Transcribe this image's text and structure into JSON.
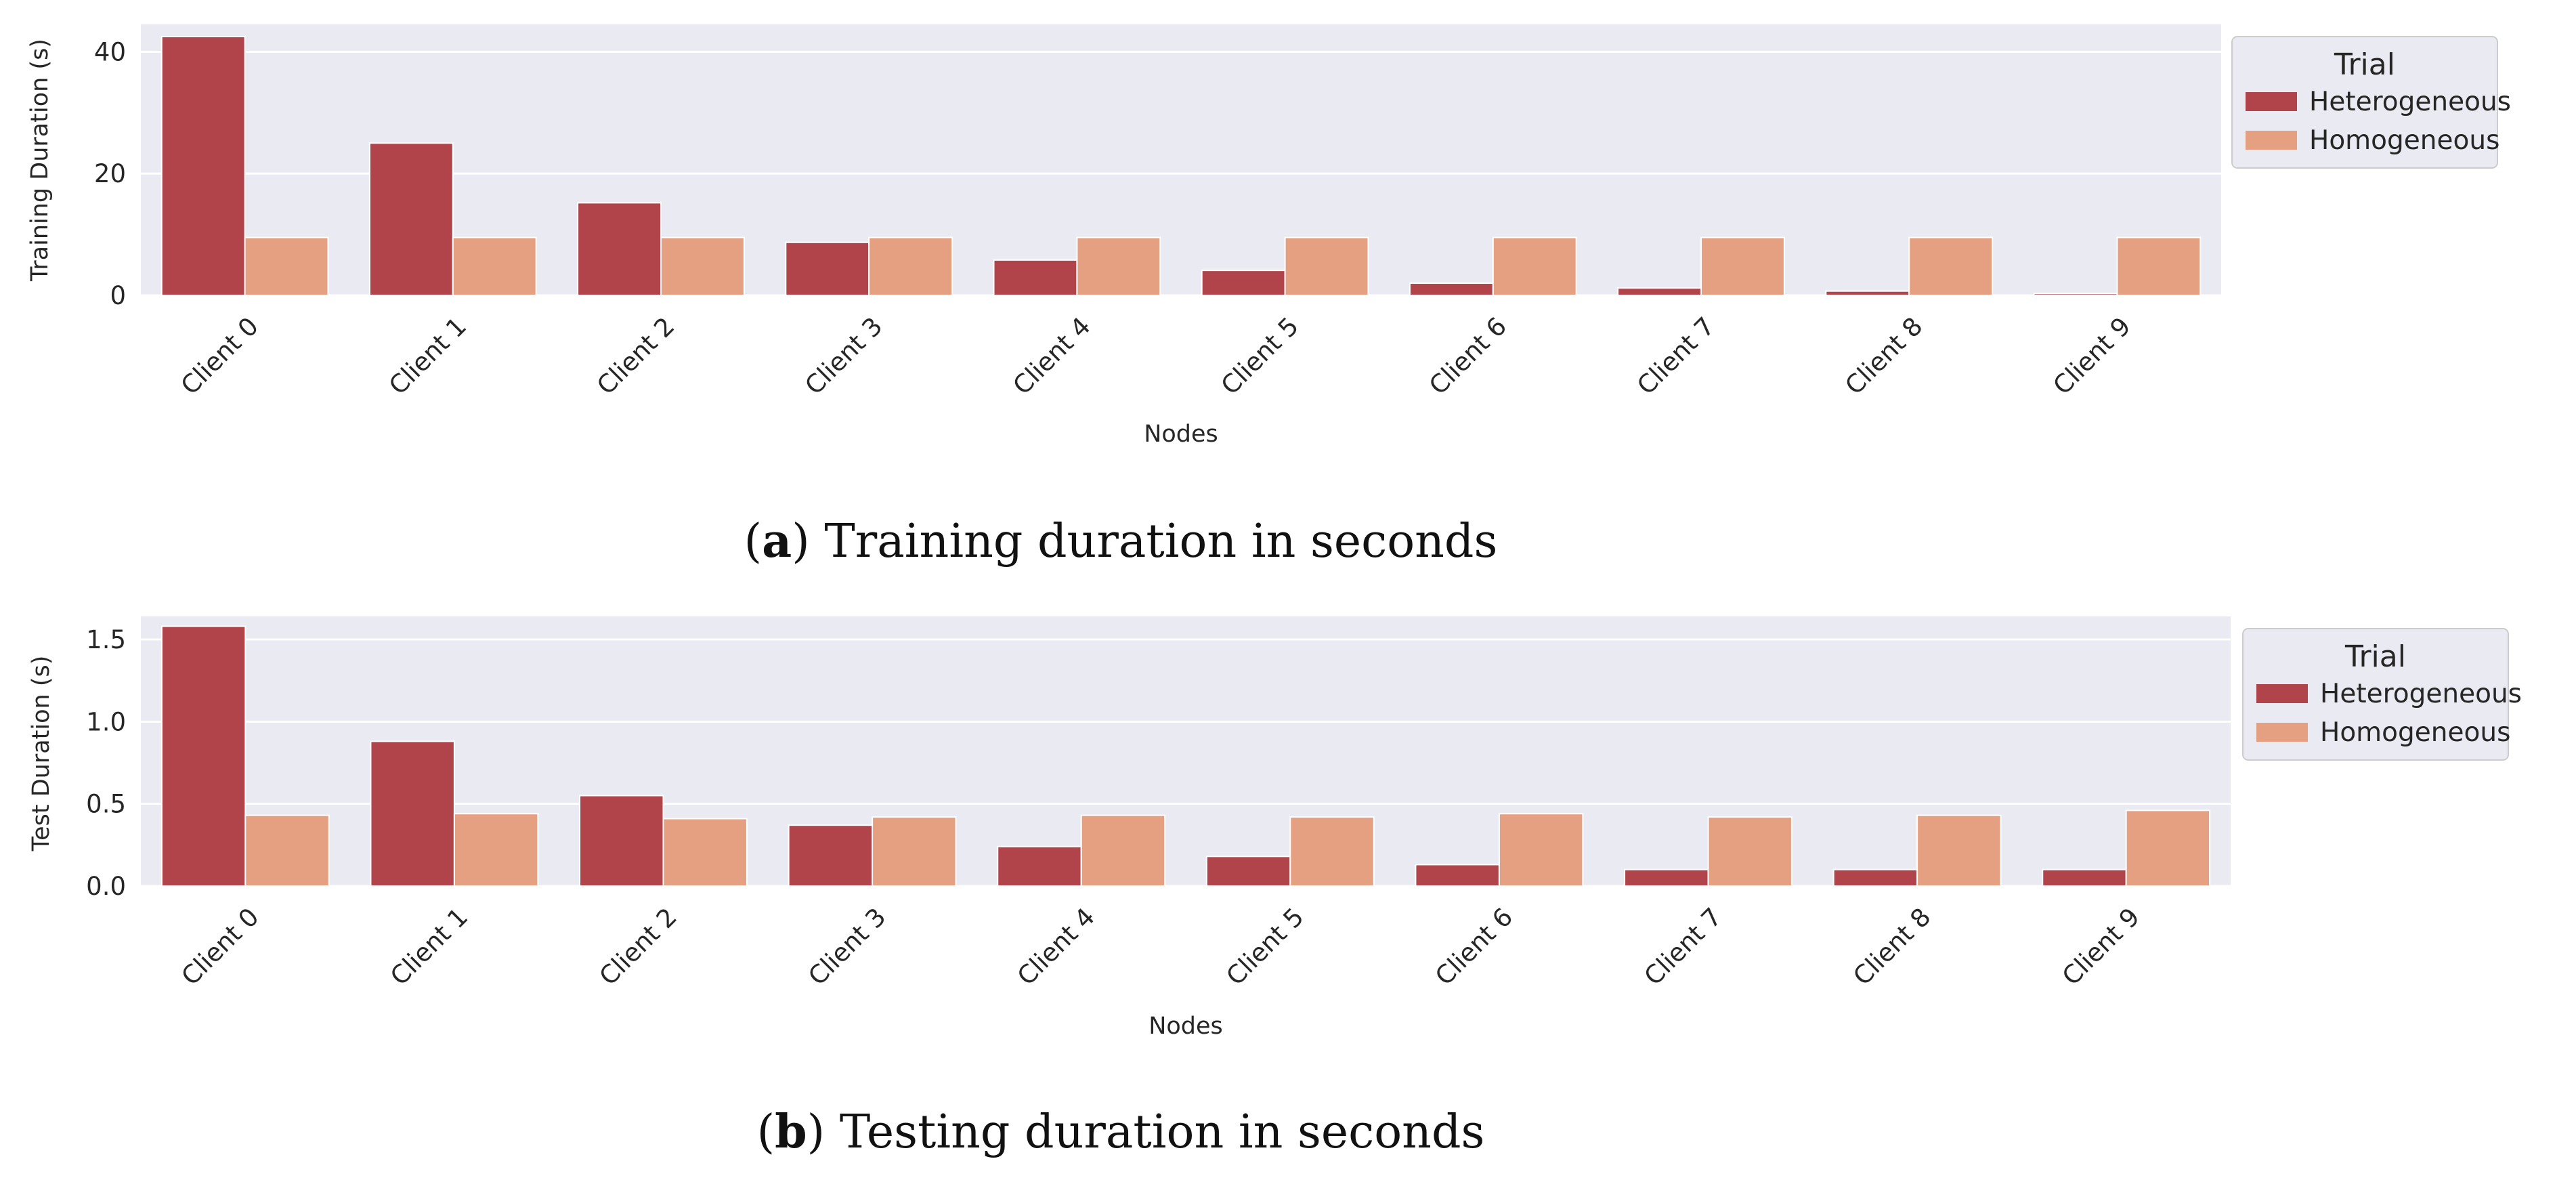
{
  "chart_data": [
    {
      "type": "bar",
      "title": "",
      "xlabel": "Nodes",
      "ylabel": "Training Duration (s)",
      "ylim": [
        0,
        44.5
      ],
      "yticks": [
        0,
        20,
        40
      ],
      "ytick_labels": [
        "0",
        "20",
        "40"
      ],
      "categories": [
        "Client 0",
        "Client 1",
        "Client 2",
        "Client 3",
        "Client 4",
        "Client 5",
        "Client 6",
        "Client 7",
        "Client 8",
        "Client 9"
      ],
      "series": [
        {
          "name": "Heterogeneous",
          "color": "#b0444a",
          "values": [
            42.5,
            25.0,
            15.2,
            8.7,
            5.8,
            4.1,
            2.0,
            1.2,
            0.7,
            0.3
          ]
        },
        {
          "name": "Homogeneous",
          "color": "#e5a081",
          "values": [
            9.5,
            9.5,
            9.5,
            9.5,
            9.5,
            9.5,
            9.5,
            9.5,
            9.5,
            9.5
          ]
        }
      ],
      "legend": {
        "title": "Trial",
        "placement": "outside-top-right"
      },
      "grid": true,
      "caption": {
        "label": "a",
        "text": "Training duration in seconds"
      }
    },
    {
      "type": "bar",
      "title": "",
      "xlabel": "Nodes",
      "ylabel": "Test Duration (s)",
      "ylim": [
        0,
        1.64
      ],
      "yticks": [
        0,
        0.5,
        1.0,
        1.5
      ],
      "ytick_labels": [
        "0.0",
        "0.5",
        "1.0",
        "1.5"
      ],
      "categories": [
        "Client 0",
        "Client 1",
        "Client 2",
        "Client 3",
        "Client 4",
        "Client 5",
        "Client 6",
        "Client 7",
        "Client 8",
        "Client 9"
      ],
      "series": [
        {
          "name": "Heterogeneous",
          "color": "#b0444a",
          "values": [
            1.58,
            0.88,
            0.55,
            0.37,
            0.24,
            0.18,
            0.13,
            0.1,
            0.1,
            0.1
          ]
        },
        {
          "name": "Homogeneous",
          "color": "#e5a081",
          "values": [
            0.43,
            0.44,
            0.41,
            0.42,
            0.43,
            0.42,
            0.44,
            0.42,
            0.43,
            0.46
          ]
        }
      ],
      "legend": {
        "title": "Trial",
        "placement": "outside-top-right"
      },
      "grid": true,
      "caption": {
        "label": "b",
        "text": "Testing duration in seconds"
      }
    }
  ]
}
